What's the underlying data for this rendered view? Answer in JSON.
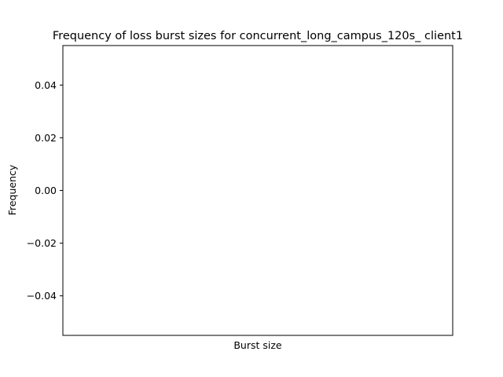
{
  "chart_data": {
    "type": "bar",
    "title": "Frequency of loss burst sizes for concurrent_long_campus_120s_ client1",
    "xlabel": "Burst size",
    "ylabel": "Frequency",
    "categories": [],
    "values": [],
    "ylim": [
      -0.055,
      0.055
    ],
    "yticks": [
      -0.04,
      -0.02,
      0.0,
      0.02,
      0.04
    ],
    "ytick_labels": [
      "−0.04",
      "−0.02",
      "0.00",
      "0.02",
      "0.04"
    ],
    "xticks": [],
    "grid": false,
    "legend": "none"
  }
}
